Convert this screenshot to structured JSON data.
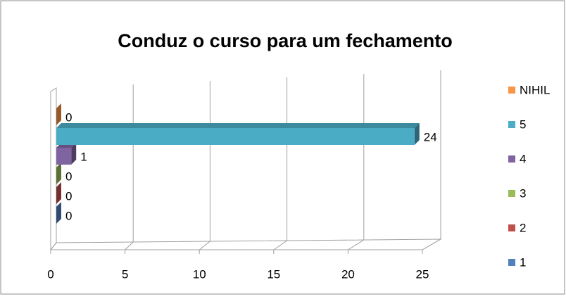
{
  "chart_data": {
    "type": "bar",
    "orientation": "horizontal",
    "title": "Conduz o curso para um fechamento",
    "categories": [
      null
    ],
    "series": [
      {
        "name": "1",
        "color": "#4f81bd",
        "values": [
          0
        ]
      },
      {
        "name": "2",
        "color": "#c0504d",
        "values": [
          0
        ]
      },
      {
        "name": "3",
        "color": "#9bbb59",
        "values": [
          0
        ]
      },
      {
        "name": "4",
        "color": "#8064a2",
        "values": [
          1
        ]
      },
      {
        "name": "5",
        "color": "#4bacc6",
        "values": [
          24
        ]
      },
      {
        "name": "NIHIL",
        "color": "#f79646",
        "values": [
          0
        ]
      }
    ],
    "xlim": [
      0,
      25
    ],
    "xticks": [
      0,
      5,
      10,
      15,
      20,
      25
    ],
    "grid": true,
    "legend": "right"
  }
}
